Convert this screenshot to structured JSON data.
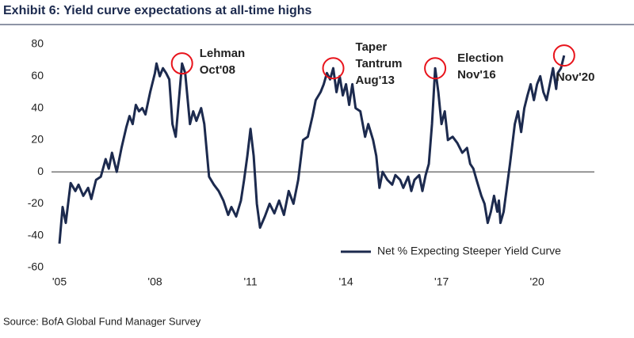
{
  "chart_data": {
    "type": "line",
    "title": "Exhibit 6: Yield curve expectations at all-time highs",
    "source": "Source: BofA Global Fund Manager Survey",
    "x": [
      2005,
      2005.1,
      2005.2,
      2005.35,
      2005.5,
      2005.6,
      2005.75,
      2005.9,
      2006,
      2006.15,
      2006.3,
      2006.45,
      2006.55,
      2006.65,
      2006.8,
      2006.95,
      2007.1,
      2007.2,
      2007.3,
      2007.4,
      2007.5,
      2007.6,
      2007.7,
      2007.85,
      2008,
      2008.05,
      2008.15,
      2008.25,
      2008.35,
      2008.45,
      2008.55,
      2008.65,
      2008.75,
      2008.85,
      2008.95,
      2009.1,
      2009.2,
      2009.3,
      2009.45,
      2009.55,
      2009.7,
      2009.85,
      2010,
      2010.15,
      2010.3,
      2010.4,
      2010.55,
      2010.7,
      2010.8,
      2010.9,
      2011,
      2011.1,
      2011.2,
      2011.3,
      2011.45,
      2011.6,
      2011.75,
      2011.9,
      2012.05,
      2012.2,
      2012.35,
      2012.5,
      2012.65,
      2012.8,
      2012.95,
      2013.05,
      2013.2,
      2013.3,
      2013.4,
      2013.5,
      2013.6,
      2013.7,
      2013.8,
      2013.9,
      2014,
      2014.1,
      2014.2,
      2014.3,
      2014.45,
      2014.6,
      2014.7,
      2014.85,
      2014.95,
      2015.05,
      2015.15,
      2015.3,
      2015.45,
      2015.55,
      2015.7,
      2015.8,
      2015.95,
      2016.05,
      2016.15,
      2016.3,
      2016.4,
      2016.5,
      2016.6,
      2016.7,
      2016.8,
      2016.9,
      2017,
      2017.1,
      2017.2,
      2017.35,
      2017.5,
      2017.65,
      2017.8,
      2017.9,
      2018,
      2018.1,
      2018.25,
      2018.35,
      2018.45,
      2018.55,
      2018.65,
      2018.75,
      2018.8,
      2018.85,
      2018.95,
      2019.05,
      2019.15,
      2019.3,
      2019.4,
      2019.5,
      2019.6,
      2019.7,
      2019.8,
      2019.9,
      2020,
      2020.1,
      2020.2,
      2020.3,
      2020.4,
      2020.5,
      2020.6,
      2020.65,
      2020.75,
      2020.85
    ],
    "series": [
      {
        "name": "Net % Expecting Steeper Yield Curve",
        "color": "#1c2a4e",
        "values": [
          -45,
          -22,
          -32,
          -7,
          -12,
          -8,
          -15,
          -10,
          -17,
          -5,
          -3,
          8,
          2,
          12,
          0,
          15,
          28,
          35,
          30,
          42,
          38,
          40,
          36,
          50,
          62,
          68,
          60,
          65,
          62,
          58,
          30,
          22,
          45,
          68,
          62,
          30,
          38,
          32,
          40,
          30,
          -3,
          -8,
          -12,
          -18,
          -27,
          -22,
          -28,
          -18,
          -5,
          10,
          27,
          10,
          -20,
          -35,
          -28,
          -20,
          -26,
          -18,
          -27,
          -12,
          -20,
          -5,
          20,
          22,
          35,
          45,
          50,
          55,
          62,
          58,
          65,
          50,
          60,
          48,
          55,
          42,
          55,
          40,
          38,
          22,
          30,
          20,
          10,
          -10,
          0,
          -5,
          -8,
          -2,
          -5,
          -10,
          -3,
          -12,
          -5,
          -2,
          -12,
          -2,
          5,
          30,
          65,
          50,
          30,
          38,
          20,
          22,
          18,
          12,
          15,
          5,
          2,
          -5,
          -15,
          -20,
          -32,
          -25,
          -15,
          -25,
          -18,
          -32,
          -25,
          -10,
          5,
          30,
          38,
          25,
          40,
          48,
          55,
          45,
          55,
          60,
          50,
          45,
          55,
          65,
          52,
          62,
          65,
          73
        ]
      }
    ],
    "xlim": [
      2005,
      2021.8
    ],
    "xticks": [
      {
        "value": 2005,
        "label": "'05"
      },
      {
        "value": 2008,
        "label": "'08"
      },
      {
        "value": 2011,
        "label": "'11"
      },
      {
        "value": 2014,
        "label": "'14"
      },
      {
        "value": 2017,
        "label": "'17"
      },
      {
        "value": 2020,
        "label": "'20"
      }
    ],
    "ylim": [
      -60,
      80
    ],
    "yticks": [
      -60,
      -40,
      -20,
      0,
      20,
      40,
      60,
      80
    ],
    "legend": "lower right",
    "annotations": [
      {
        "text": [
          "Lehman",
          "Oct'08"
        ],
        "x": 2008.85,
        "y": 68,
        "color": "#e8141c"
      },
      {
        "text": [
          "Taper",
          "Tantrum",
          "Aug'13"
        ],
        "x": 2013.6,
        "y": 65,
        "color": "#e8141c"
      },
      {
        "text": [
          "Election",
          "Nov'16"
        ],
        "x": 2016.8,
        "y": 65,
        "color": "#e8141c"
      },
      {
        "text": [
          "Nov'20"
        ],
        "x": 2020.85,
        "y": 73,
        "color": "#e8141c"
      }
    ]
  }
}
